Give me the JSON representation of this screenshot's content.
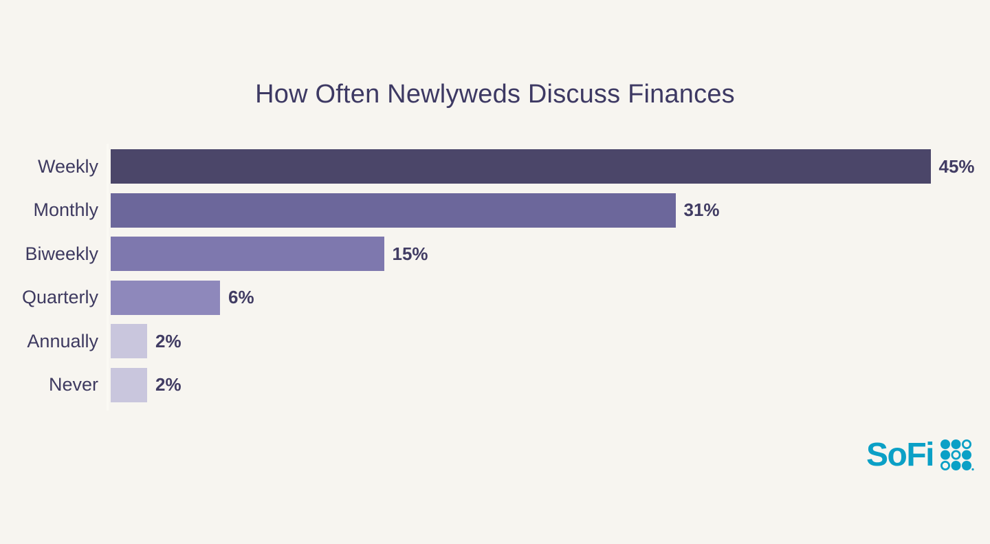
{
  "chart_data": {
    "type": "bar",
    "orientation": "horizontal",
    "title": "How Often Newlyweds Discuss Finances",
    "categories": [
      "Weekly",
      "Monthly",
      "Biweekly",
      "Quarterly",
      "Annually",
      "Never"
    ],
    "values": [
      45,
      31,
      15,
      6,
      2,
      2
    ],
    "value_labels": [
      "45%",
      "31%",
      "15%",
      "6%",
      "2%",
      "2%"
    ],
    "bar_colors": [
      "#4b4669",
      "#6c679b",
      "#7e78ae",
      "#8e88bb",
      "#c9c6dd",
      "#c9c6dd"
    ],
    "xlabel": "",
    "ylabel": "",
    "xlim": [
      0,
      45
    ],
    "grid": false,
    "legend": false,
    "data_labels": "outside-end"
  },
  "branding": {
    "logo_text": "SoFi",
    "logo_color": "#0ba0c6",
    "logo_dots_pattern": [
      [
        "filled",
        "filled",
        "hollow"
      ],
      [
        "filled",
        "hollow",
        "filled"
      ],
      [
        "hollow",
        "filled",
        "filled"
      ]
    ]
  },
  "colors": {
    "background": "#f7f5f0",
    "title_text": "#3d3963",
    "category_label_text": "#3e3a60",
    "value_label_text": "#413c63",
    "axis_line": "#fbfaf4"
  }
}
